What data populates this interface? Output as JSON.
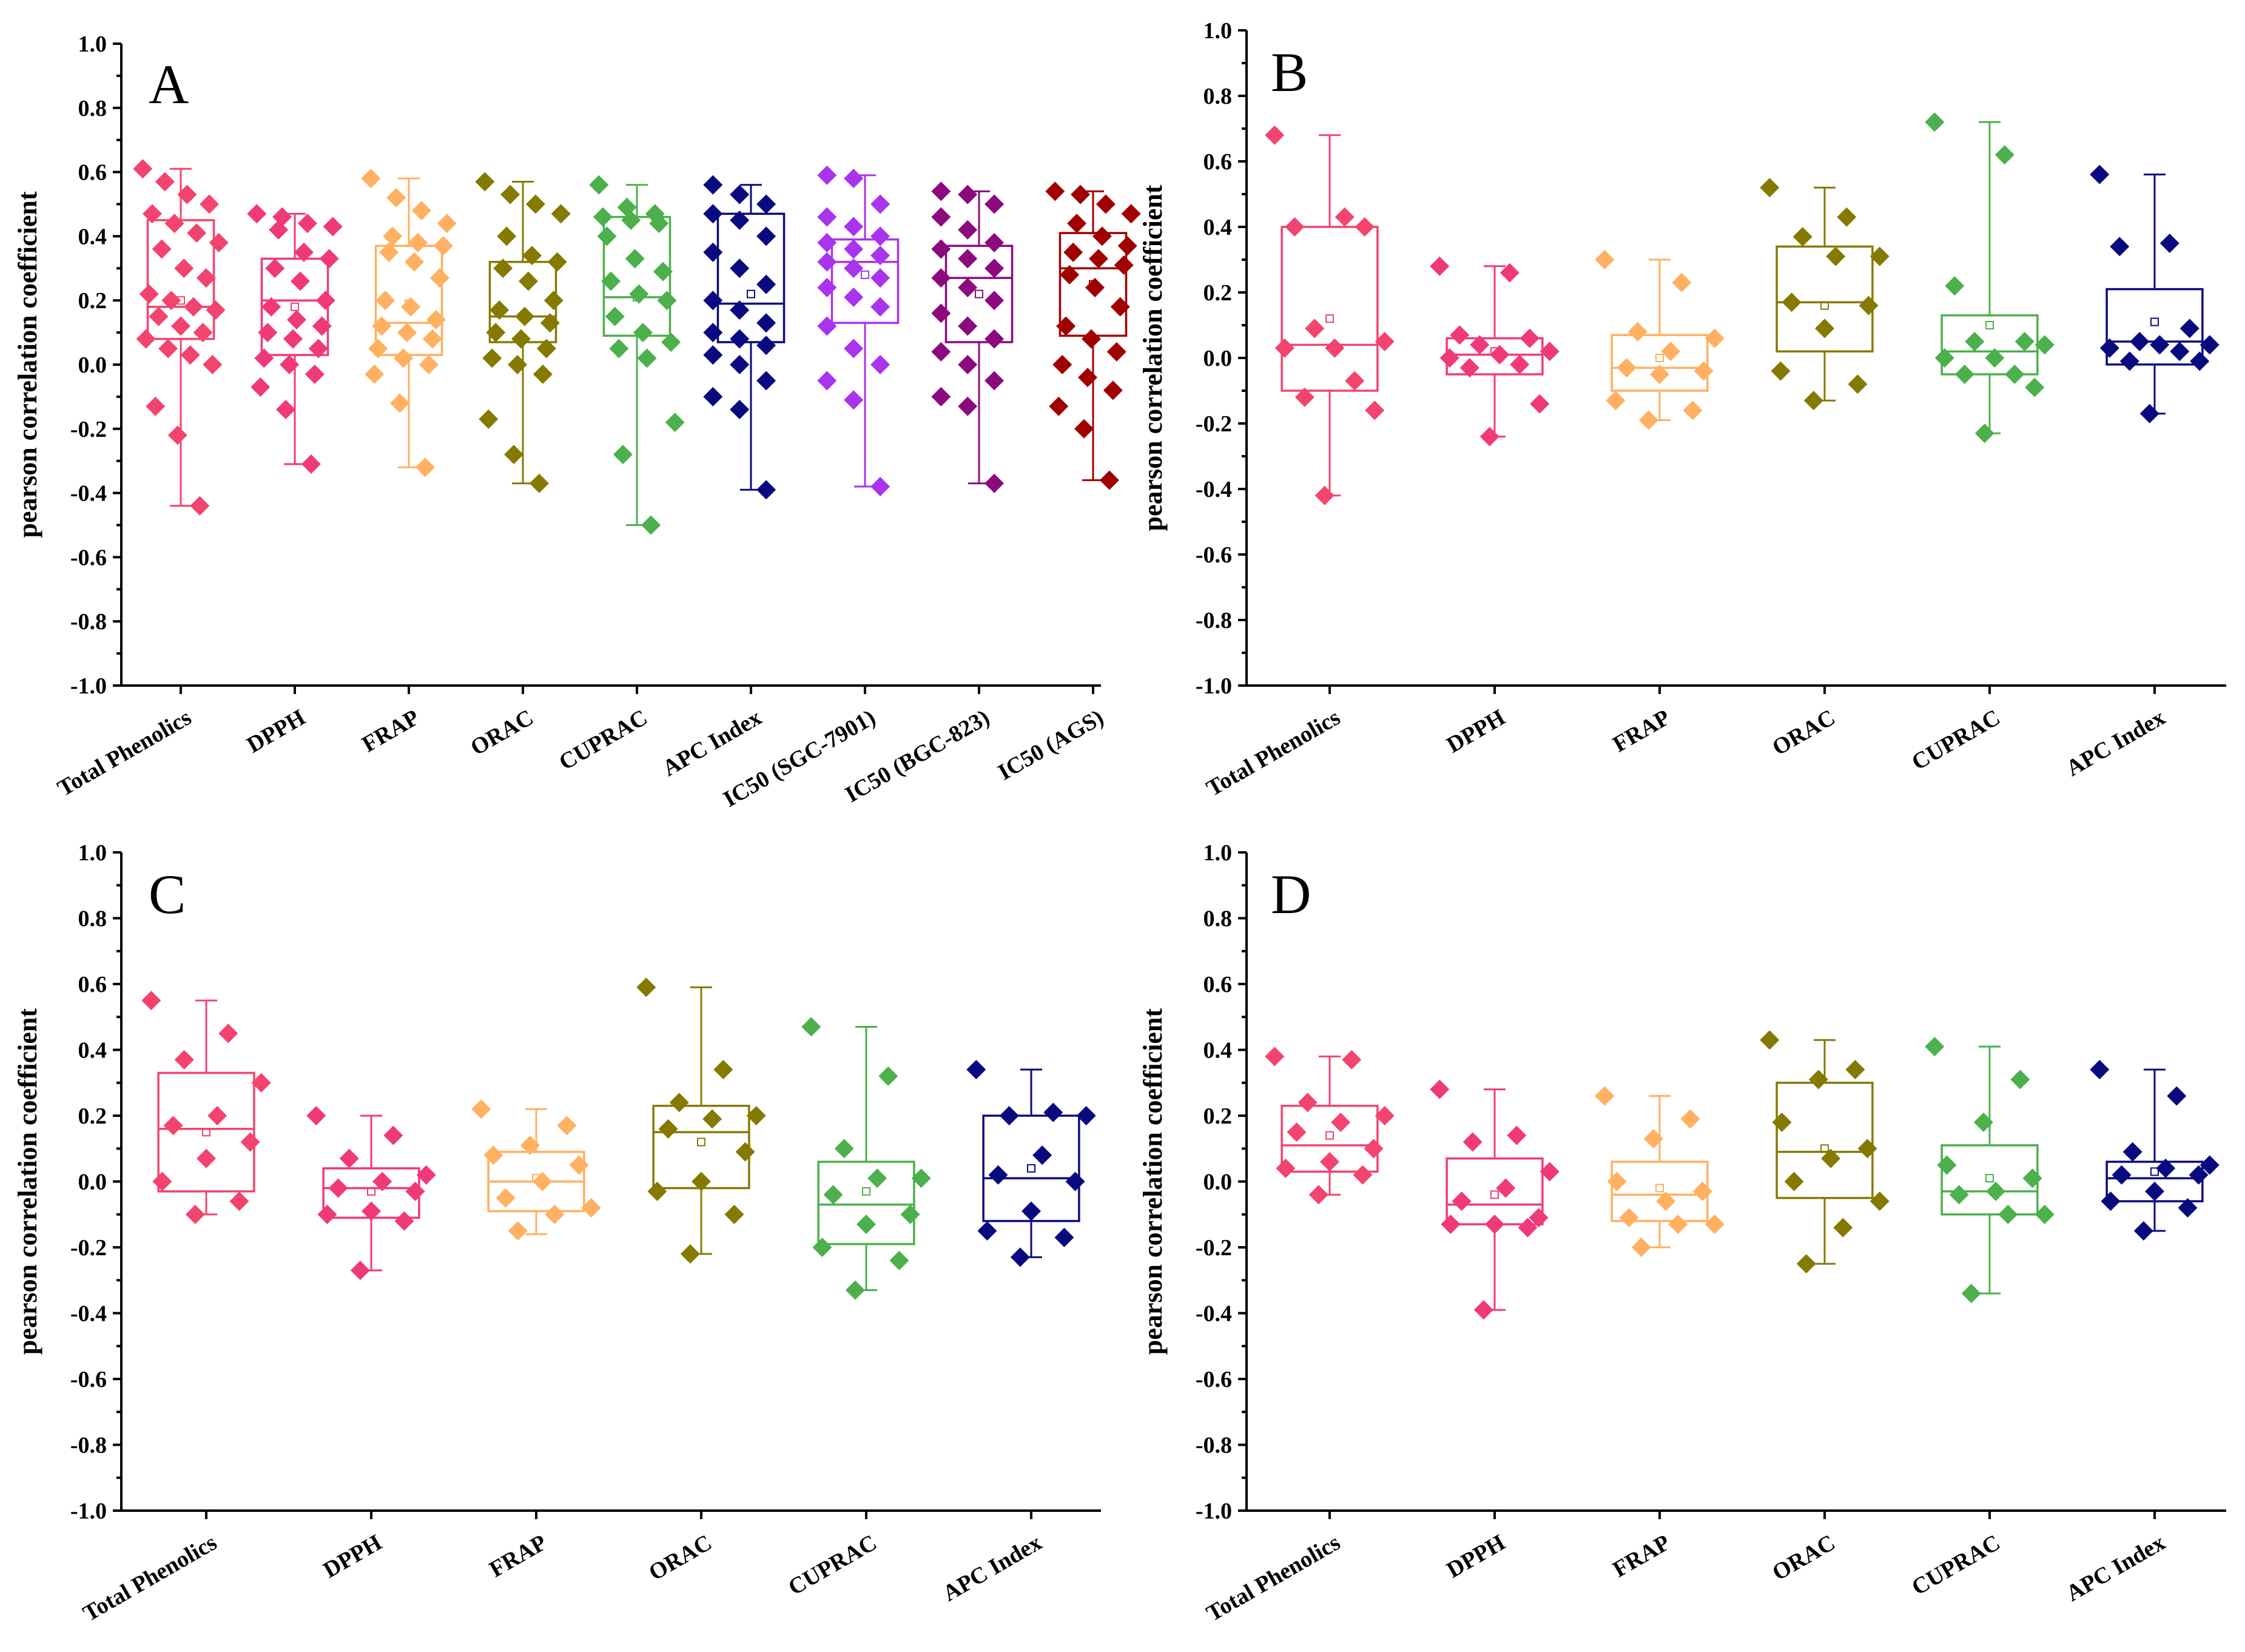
{
  "chart_data": [
    {
      "type": "box",
      "panel_label": "A",
      "ylabel": "pearson correlation coefficient",
      "ylim": [
        -1.0,
        1.0
      ],
      "yticks": [
        "1.0",
        "0.8",
        "0.6",
        "0.4",
        "0.2",
        "0.0",
        "-0.2",
        "-0.4",
        "-0.6",
        "-0.8",
        "-1.0"
      ],
      "categories": [
        "Total Phenolics",
        "DPPH",
        "FRAP",
        "ORAC",
        "CUPRAC",
        "APC Index",
        "IC50 (SGC-7901)",
        "IC50 (BGC-823)",
        "IC50 (AGS)"
      ],
      "colors": [
        "#f2446e",
        "#f0397a",
        "#ffb060",
        "#857a00",
        "#4cb04c",
        "#0a0a80",
        "#aa33ee",
        "#8c0a7e",
        "#a00000"
      ],
      "boxes": [
        {
          "q1": 0.08,
          "median": 0.18,
          "q3": 0.45,
          "mean": 0.2,
          "min": -0.44,
          "max": 0.61
        },
        {
          "q1": 0.03,
          "median": 0.2,
          "q3": 0.33,
          "mean": 0.18,
          "min": -0.31,
          "max": 0.47
        },
        {
          "q1": 0.03,
          "median": 0.13,
          "q3": 0.37,
          "mean": 0.19,
          "min": -0.32,
          "max": 0.58
        },
        {
          "q1": 0.07,
          "median": 0.15,
          "q3": 0.32,
          "mean": 0.15,
          "min": -0.37,
          "max": 0.57
        },
        {
          "q1": 0.09,
          "median": 0.21,
          "q3": 0.46,
          "mean": 0.21,
          "min": -0.5,
          "max": 0.56
        },
        {
          "q1": 0.07,
          "median": 0.19,
          "q3": 0.47,
          "mean": 0.22,
          "min": -0.39,
          "max": 0.56
        },
        {
          "q1": 0.13,
          "median": 0.32,
          "q3": 0.39,
          "mean": 0.28,
          "min": -0.38,
          "max": 0.59
        },
        {
          "q1": 0.07,
          "median": 0.27,
          "q3": 0.37,
          "mean": 0.22,
          "min": -0.37,
          "max": 0.54
        },
        {
          "q1": 0.09,
          "median": 0.3,
          "q3": 0.41,
          "mean": 0.25,
          "min": -0.36,
          "max": 0.54
        }
      ],
      "points": [
        [
          0.61,
          0.57,
          0.53,
          0.5,
          0.47,
          0.44,
          0.41,
          0.38,
          0.36,
          0.3,
          0.27,
          0.22,
          0.2,
          0.18,
          0.17,
          0.15,
          0.12,
          0.1,
          0.08,
          0.05,
          0.03,
          0.0,
          -0.13,
          -0.22,
          -0.44
        ],
        [
          0.47,
          0.46,
          0.44,
          0.43,
          0.42,
          0.35,
          0.33,
          0.3,
          0.26,
          0.2,
          0.18,
          0.14,
          0.12,
          0.1,
          0.08,
          0.05,
          0.02,
          0.0,
          -0.03,
          -0.07,
          -0.14,
          -0.31
        ],
        [
          0.58,
          0.52,
          0.48,
          0.44,
          0.4,
          0.38,
          0.37,
          0.35,
          0.32,
          0.27,
          0.2,
          0.18,
          0.14,
          0.12,
          0.1,
          0.08,
          0.05,
          0.02,
          0.0,
          -0.03,
          -0.12,
          -0.32
        ],
        [
          0.57,
          0.53,
          0.5,
          0.47,
          0.4,
          0.34,
          0.32,
          0.3,
          0.26,
          0.2,
          0.17,
          0.15,
          0.13,
          0.1,
          0.08,
          0.05,
          0.02,
          0.0,
          -0.03,
          -0.17,
          -0.28,
          -0.37
        ],
        [
          0.56,
          0.49,
          0.47,
          0.46,
          0.45,
          0.44,
          0.4,
          0.33,
          0.29,
          0.26,
          0.22,
          0.2,
          0.15,
          0.1,
          0.07,
          0.05,
          0.02,
          -0.18,
          -0.28,
          -0.5
        ],
        [
          0.56,
          0.53,
          0.5,
          0.47,
          0.45,
          0.4,
          0.35,
          0.3,
          0.25,
          0.2,
          0.17,
          0.13,
          0.1,
          0.08,
          0.06,
          0.03,
          0.0,
          -0.05,
          -0.1,
          -0.14,
          -0.39
        ],
        [
          0.59,
          0.58,
          0.5,
          0.46,
          0.43,
          0.4,
          0.38,
          0.36,
          0.34,
          0.32,
          0.3,
          0.27,
          0.24,
          0.21,
          0.18,
          0.12,
          0.05,
          0.0,
          -0.05,
          -0.11,
          -0.38
        ],
        [
          0.54,
          0.53,
          0.5,
          0.46,
          0.42,
          0.38,
          0.36,
          0.33,
          0.3,
          0.27,
          0.24,
          0.2,
          0.16,
          0.12,
          0.08,
          0.04,
          0.0,
          -0.05,
          -0.1,
          -0.13,
          -0.37
        ],
        [
          0.54,
          0.53,
          0.5,
          0.47,
          0.44,
          0.4,
          0.37,
          0.35,
          0.33,
          0.31,
          0.28,
          0.24,
          0.18,
          0.12,
          0.08,
          0.04,
          0.0,
          -0.04,
          -0.08,
          -0.13,
          -0.2,
          -0.36
        ]
      ]
    },
    {
      "type": "box",
      "panel_label": "B",
      "ylabel": "pearson correlation coefficient",
      "ylim": [
        -1.0,
        1.0
      ],
      "yticks": [
        "1.0",
        "0.8",
        "0.6",
        "0.4",
        "0.2",
        "0.0",
        "-0.2",
        "-0.4",
        "-0.6",
        "-0.8",
        "-1.0"
      ],
      "categories": [
        "Total Phenolics",
        "DPPH",
        "FRAP",
        "ORAC",
        "CUPRAC",
        "APC Index"
      ],
      "colors": [
        "#f2446e",
        "#f0397a",
        "#ffb060",
        "#857a00",
        "#4cb04c",
        "#0a0a80"
      ],
      "boxes": [
        {
          "q1": -0.1,
          "median": 0.04,
          "q3": 0.4,
          "mean": 0.12,
          "min": -0.42,
          "max": 0.68
        },
        {
          "q1": -0.05,
          "median": 0.01,
          "q3": 0.06,
          "mean": 0.02,
          "min": -0.24,
          "max": 0.28
        },
        {
          "q1": -0.1,
          "median": -0.03,
          "q3": 0.07,
          "mean": 0.0,
          "min": -0.19,
          "max": 0.3
        },
        {
          "q1": 0.02,
          "median": 0.17,
          "q3": 0.34,
          "mean": 0.16,
          "min": -0.13,
          "max": 0.52
        },
        {
          "q1": -0.05,
          "median": 0.02,
          "q3": 0.13,
          "mean": 0.1,
          "min": -0.23,
          "max": 0.72
        },
        {
          "q1": -0.02,
          "median": 0.05,
          "q3": 0.21,
          "mean": 0.11,
          "min": -0.17,
          "max": 0.56
        }
      ],
      "points": [
        [
          0.68,
          0.43,
          0.4,
          0.4,
          0.09,
          0.05,
          0.03,
          0.03,
          -0.07,
          -0.12,
          -0.16,
          -0.42
        ],
        [
          0.28,
          0.26,
          0.07,
          0.06,
          0.04,
          0.02,
          0.01,
          0.0,
          -0.02,
          -0.03,
          -0.14,
          -0.24
        ],
        [
          0.3,
          0.23,
          0.08,
          0.06,
          0.02,
          -0.03,
          -0.04,
          -0.05,
          -0.13,
          -0.16,
          -0.19
        ],
        [
          0.52,
          0.43,
          0.37,
          0.31,
          0.31,
          0.17,
          0.16,
          0.09,
          -0.04,
          -0.08,
          -0.13
        ],
        [
          0.72,
          0.62,
          0.22,
          0.05,
          0.05,
          0.04,
          0.0,
          0.0,
          -0.05,
          -0.05,
          -0.09,
          -0.23
        ],
        [
          0.56,
          0.35,
          0.34,
          0.09,
          0.05,
          0.04,
          0.04,
          0.03,
          0.02,
          -0.01,
          -0.01,
          -0.17
        ]
      ]
    },
    {
      "type": "box",
      "panel_label": "C",
      "ylabel": "pearson correlation coefficient",
      "ylim": [
        -1.0,
        1.0
      ],
      "yticks": [
        "1.0",
        "0.8",
        "0.6",
        "0.4",
        "0.2",
        "0.0",
        "-0.2",
        "-0.4",
        "-0.6",
        "-0.8",
        "-1.0"
      ],
      "categories": [
        "Total Phenolics",
        "DPPH",
        "FRAP",
        "ORAC",
        "CUPRAC",
        "APC Index"
      ],
      "colors": [
        "#f2446e",
        "#f0397a",
        "#ffb060",
        "#857a00",
        "#4cb04c",
        "#0a0a80"
      ],
      "boxes": [
        {
          "q1": -0.03,
          "median": 0.16,
          "q3": 0.33,
          "mean": 0.15,
          "min": -0.1,
          "max": 0.55
        },
        {
          "q1": -0.11,
          "median": -0.02,
          "q3": 0.04,
          "mean": -0.03,
          "min": -0.27,
          "max": 0.2
        },
        {
          "q1": -0.09,
          "median": 0.0,
          "q3": 0.09,
          "mean": 0.01,
          "min": -0.16,
          "max": 0.22
        },
        {
          "q1": -0.02,
          "median": 0.15,
          "q3": 0.23,
          "mean": 0.12,
          "min": -0.22,
          "max": 0.59
        },
        {
          "q1": -0.19,
          "median": -0.07,
          "q3": 0.06,
          "mean": -0.03,
          "min": -0.33,
          "max": 0.47
        },
        {
          "q1": -0.12,
          "median": 0.01,
          "q3": 0.2,
          "mean": 0.04,
          "min": -0.23,
          "max": 0.34
        }
      ],
      "points": [
        [
          0.55,
          0.45,
          0.37,
          0.3,
          0.2,
          0.17,
          0.12,
          0.07,
          0.0,
          -0.06,
          -0.1
        ],
        [
          0.2,
          0.14,
          0.07,
          0.02,
          0.0,
          -0.02,
          -0.03,
          -0.09,
          -0.1,
          -0.12,
          -0.27
        ],
        [
          0.22,
          0.17,
          0.11,
          0.08,
          0.05,
          0.0,
          -0.05,
          -0.08,
          -0.1,
          -0.15
        ],
        [
          0.59,
          0.34,
          0.24,
          0.2,
          0.19,
          0.16,
          0.09,
          0.0,
          -0.03,
          -0.1,
          -0.22
        ],
        [
          0.47,
          0.32,
          0.1,
          0.01,
          0.01,
          -0.04,
          -0.1,
          -0.13,
          -0.2,
          -0.24,
          -0.33
        ],
        [
          0.34,
          0.21,
          0.2,
          0.2,
          0.08,
          0.02,
          0.0,
          -0.09,
          -0.15,
          -0.17,
          -0.23
        ]
      ]
    },
    {
      "type": "box",
      "panel_label": "D",
      "ylabel": "pearson correlation coefficient",
      "ylim": [
        -1.0,
        1.0
      ],
      "yticks": [
        "1.0",
        "0.8",
        "0.6",
        "0.4",
        "0.2",
        "0.0",
        "-0.2",
        "-0.4",
        "-0.6",
        "-0.8",
        "-1.0"
      ],
      "categories": [
        "Total Phenolics",
        "DPPH",
        "FRAP",
        "ORAC",
        "CUPRAC",
        "APC Index"
      ],
      "colors": [
        "#f2446e",
        "#f0397a",
        "#ffb060",
        "#857a00",
        "#4cb04c",
        "#0a0a80"
      ],
      "boxes": [
        {
          "q1": 0.03,
          "median": 0.11,
          "q3": 0.23,
          "mean": 0.14,
          "min": -0.04,
          "max": 0.38
        },
        {
          "q1": -0.13,
          "median": -0.07,
          "q3": 0.07,
          "mean": -0.04,
          "min": -0.39,
          "max": 0.28
        },
        {
          "q1": -0.12,
          "median": -0.04,
          "q3": 0.06,
          "mean": -0.02,
          "min": -0.2,
          "max": 0.26
        },
        {
          "q1": -0.05,
          "median": 0.09,
          "q3": 0.3,
          "mean": 0.1,
          "min": -0.25,
          "max": 0.43
        },
        {
          "q1": -0.1,
          "median": -0.03,
          "q3": 0.11,
          "mean": 0.01,
          "min": -0.34,
          "max": 0.41
        },
        {
          "q1": -0.06,
          "median": 0.01,
          "q3": 0.06,
          "mean": 0.03,
          "min": -0.15,
          "max": 0.34
        }
      ],
      "points": [
        [
          0.38,
          0.37,
          0.24,
          0.2,
          0.18,
          0.15,
          0.1,
          0.06,
          0.04,
          0.02,
          -0.04
        ],
        [
          0.28,
          0.14,
          0.12,
          0.03,
          -0.02,
          -0.06,
          -0.11,
          -0.13,
          -0.13,
          -0.14,
          -0.39
        ],
        [
          0.26,
          0.19,
          0.13,
          0.0,
          -0.03,
          -0.06,
          -0.11,
          -0.13,
          -0.13,
          -0.2
        ],
        [
          0.43,
          0.34,
          0.31,
          0.18,
          0.1,
          0.07,
          0.0,
          -0.06,
          -0.14,
          -0.25
        ],
        [
          0.41,
          0.31,
          0.18,
          0.05,
          0.01,
          -0.03,
          -0.04,
          -0.1,
          -0.1,
          -0.34
        ],
        [
          0.34,
          0.26,
          0.09,
          0.05,
          0.04,
          0.02,
          0.02,
          -0.03,
          -0.06,
          -0.08,
          -0.15
        ]
      ]
    }
  ]
}
